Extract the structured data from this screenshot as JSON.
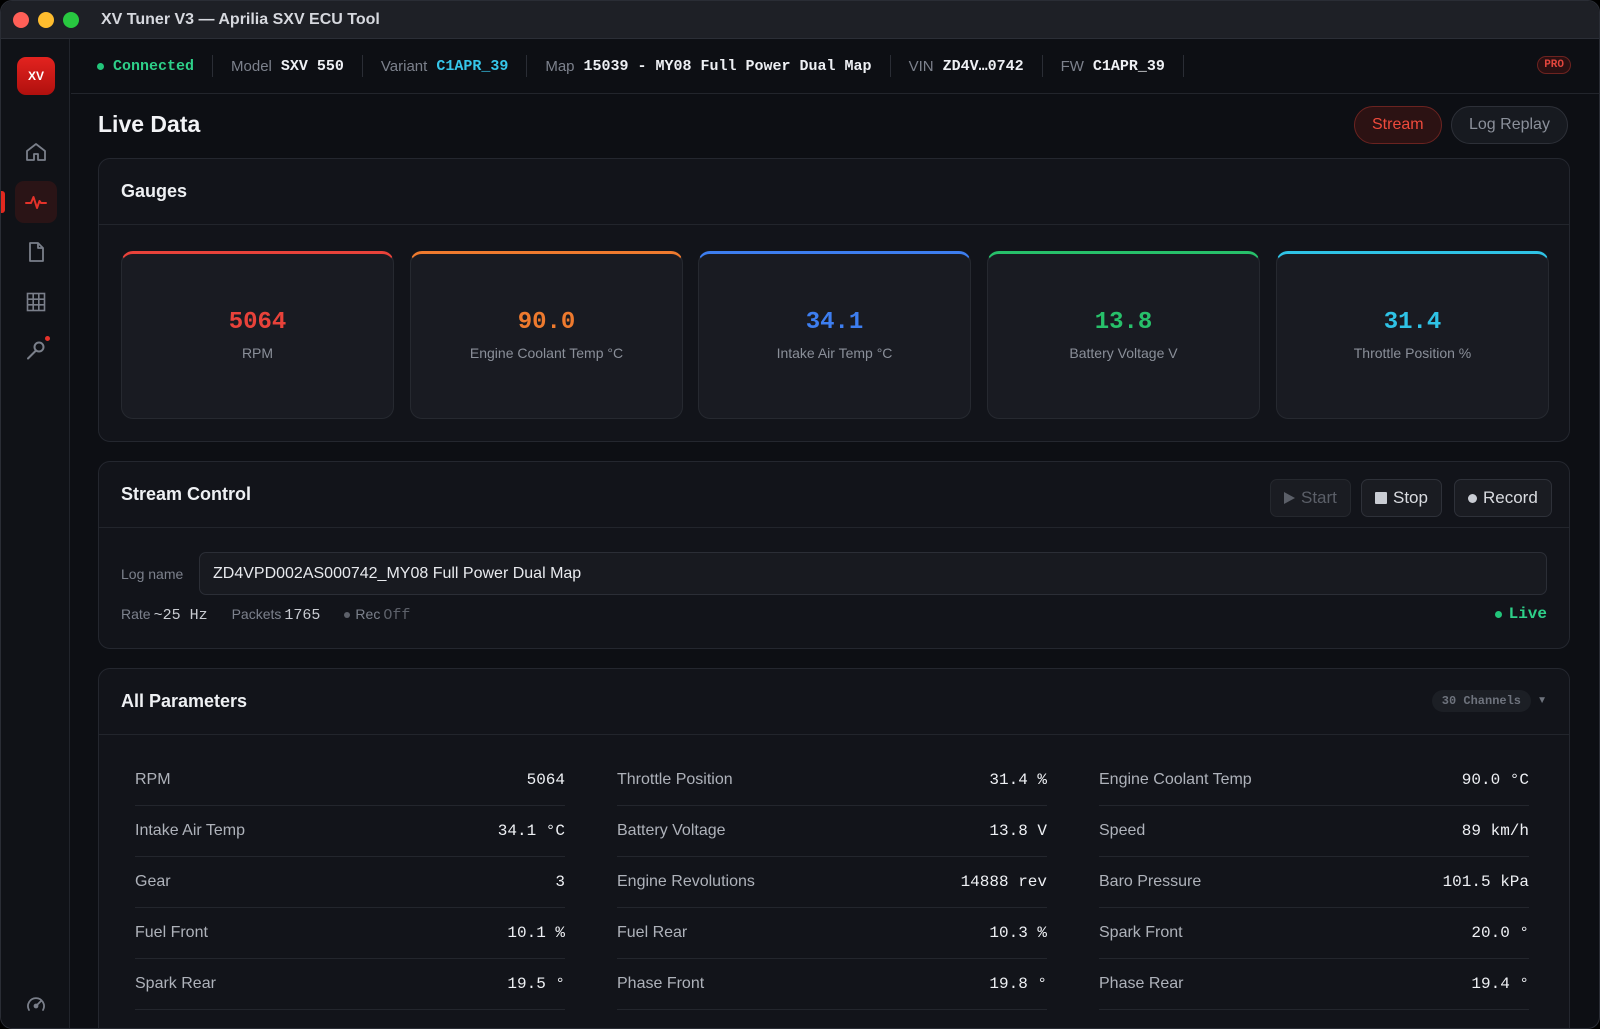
{
  "window": {
    "title": "XV Tuner V3 — Aprilia SXV ECU Tool"
  },
  "sidebar": {
    "logo": "XV",
    "items": [
      {
        "name": "home",
        "icon": "home-icon"
      },
      {
        "name": "live-data",
        "icon": "pulse-icon",
        "active": true
      },
      {
        "name": "maps",
        "icon": "file-icon"
      },
      {
        "name": "tables",
        "icon": "grid-icon"
      },
      {
        "name": "tools",
        "icon": "wrench-icon"
      },
      {
        "name": "settings",
        "icon": "gauge-icon"
      }
    ]
  },
  "topbar": {
    "status": "Connected",
    "model_label": "Model",
    "model": "SXV 550",
    "variant_label": "Variant",
    "variant": "C1APR_39",
    "map_label": "Map",
    "map": "15039 - MY08 Full Power Dual Map",
    "vin_label": "VIN",
    "vin": "ZD4V…0742",
    "fw_label": "FW",
    "fw": "C1APR_39",
    "badge": "PRO"
  },
  "page": {
    "title": "Live Data",
    "tabs": [
      "Stream",
      "Log Replay"
    ]
  },
  "gauges": {
    "title": "Gauges",
    "items": [
      {
        "value": "5064",
        "label": "RPM",
        "color": "#e8423a"
      },
      {
        "value": "90.0",
        "label": "Engine Coolant Temp °C",
        "color": "#ee7a2e"
      },
      {
        "value": "34.1",
        "label": "Intake Air Temp °C",
        "color": "#3d7ef0"
      },
      {
        "value": "13.8",
        "label": "Battery Voltage V",
        "color": "#27c06a"
      },
      {
        "value": "31.4",
        "label": "Throttle Position %",
        "color": "#2fc3e6"
      }
    ]
  },
  "stream_control": {
    "title": "Stream Control",
    "start": "Start",
    "stop": "Stop",
    "record": "Record",
    "log_label": "Log name",
    "log_value": "ZD4VPD002AS000742_MY08 Full Power Dual Map",
    "rate_label": "Rate",
    "rate": "~25 Hz",
    "packets_label": "Packets",
    "packets": "1765",
    "rec_label": "Rec",
    "rec": "Off",
    "live": "Live"
  },
  "parameters": {
    "title": "All Parameters",
    "channels": "30 Channels",
    "rows": [
      [
        {
          "n": "RPM",
          "v": "5064"
        },
        {
          "n": "Throttle Position",
          "v": "31.4 %"
        },
        {
          "n": "Engine Coolant Temp",
          "v": "90.0 °C"
        }
      ],
      [
        {
          "n": "Intake Air Temp",
          "v": "34.1 °C"
        },
        {
          "n": "Battery Voltage",
          "v": "13.8 V"
        },
        {
          "n": "Speed",
          "v": "89 km/h"
        }
      ],
      [
        {
          "n": "Gear",
          "v": "3"
        },
        {
          "n": "Engine Revolutions",
          "v": "14888 rev"
        },
        {
          "n": "Baro Pressure",
          "v": "101.5 kPa"
        }
      ],
      [
        {
          "n": "Fuel Front",
          "v": "10.1 %"
        },
        {
          "n": "Fuel Rear",
          "v": "10.3 %"
        },
        {
          "n": "Spark Front",
          "v": "20.0 °"
        }
      ],
      [
        {
          "n": "Spark Rear",
          "v": "19.5 °"
        },
        {
          "n": "Phase Front",
          "v": "19.8 °"
        },
        {
          "n": "Phase Rear",
          "v": "19.4 °"
        }
      ]
    ]
  }
}
